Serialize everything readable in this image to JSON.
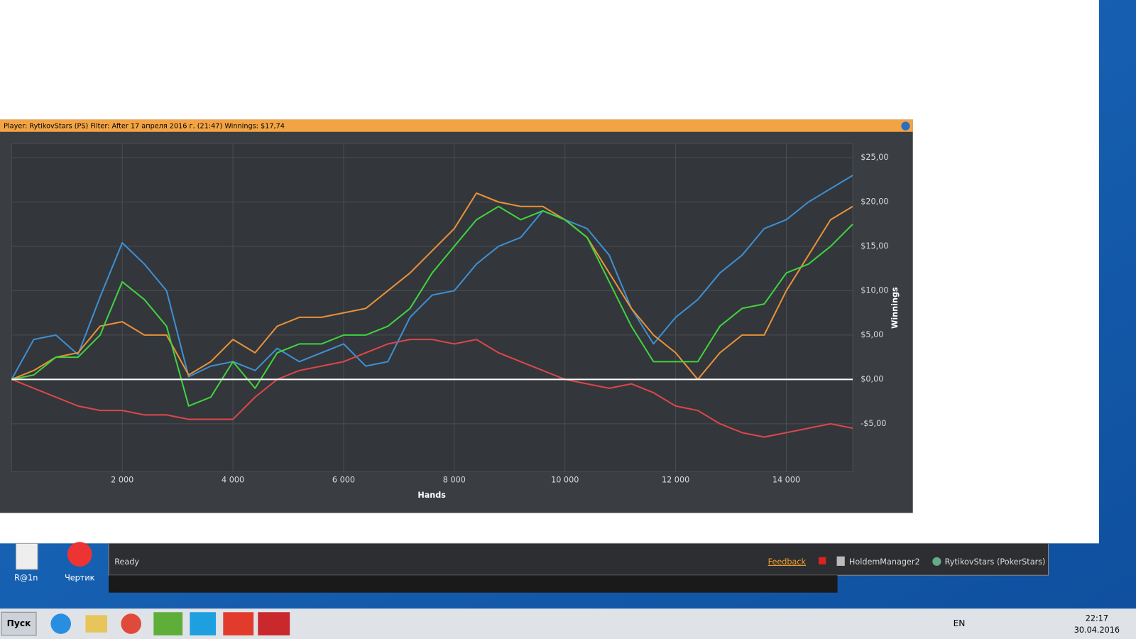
{
  "chart_data": {
    "type": "line",
    "title": "Player: RytikovStars (PS) Filter: After 17 апреля 2016 г. (21:47) Winnings: $17,74",
    "x_label": "Hands",
    "y_label": "Winnings",
    "x": [
      0,
      400,
      800,
      1200,
      1600,
      2000,
      2400,
      2800,
      3200,
      3600,
      4000,
      4400,
      4800,
      5200,
      5600,
      6000,
      6400,
      6800,
      7200,
      7600,
      8000,
      8400,
      8800,
      9200,
      9600,
      10000,
      10400,
      10800,
      11200,
      11600,
      12000,
      12400,
      12800,
      13200,
      13600,
      14000,
      14400,
      14800,
      15200
    ],
    "series": [
      {
        "color": "#3d8fd1",
        "values": [
          0,
          4.5,
          5,
          2.8,
          9.3,
          15.4,
          13,
          10,
          0.3,
          1.5,
          2,
          1,
          3.5,
          2,
          3,
          4,
          1.5,
          2,
          7,
          9.5,
          10,
          13,
          15,
          16,
          19,
          18,
          17,
          14,
          8,
          4,
          7,
          9,
          12,
          14,
          17,
          18,
          20,
          21.5,
          23
        ]
      },
      {
        "color": "#e8913a",
        "values": [
          0,
          1,
          2.5,
          3,
          6,
          6.5,
          5,
          5,
          0.5,
          2,
          4.5,
          3,
          6,
          7,
          7,
          7.5,
          8,
          10,
          12,
          14.5,
          17,
          21,
          20,
          19.5,
          19.5,
          18,
          16,
          12,
          8,
          5,
          3,
          0,
          3,
          5,
          5,
          10,
          14,
          18,
          19.5
        ]
      },
      {
        "color": "#3fd33f",
        "values": [
          0,
          0.5,
          2.5,
          2.5,
          5,
          11,
          9,
          6,
          -3,
          -2,
          2,
          -1,
          3,
          4,
          4,
          5,
          5,
          6,
          8,
          12,
          15,
          18,
          19.5,
          18,
          19,
          18,
          16,
          11,
          6,
          2,
          2,
          2,
          6,
          8,
          8.5,
          12,
          13,
          15,
          17.5
        ]
      },
      {
        "color": "#d9474a",
        "values": [
          0,
          -1,
          -2,
          -3,
          -3.5,
          -3.5,
          -4,
          -4,
          -4.5,
          -4.5,
          -4.5,
          -2,
          0,
          1,
          1.5,
          2,
          3,
          4,
          4.5,
          4.5,
          4,
          4.5,
          3,
          2,
          1,
          0,
          -0.5,
          -1,
          -0.5,
          -1.5,
          -3,
          -3.5,
          -5,
          -6,
          -6.5,
          -6,
          -5.5,
          -5,
          -5.5
        ]
      }
    ],
    "xlim": [
      0,
      15200
    ],
    "ylim": [
      -10.4,
      26.6
    ],
    "xticks": [
      {
        "value": 2000,
        "label": "2 000"
      },
      {
        "value": 4000,
        "label": "4 000"
      },
      {
        "value": 6000,
        "label": "6 000"
      },
      {
        "value": 8000,
        "label": "8 000"
      },
      {
        "value": 10000,
        "label": "10 000"
      },
      {
        "value": 12000,
        "label": "12 000"
      },
      {
        "value": 14000,
        "label": "14 000"
      }
    ],
    "yticks": [
      {
        "value": -5,
        "label": "-$5,00"
      },
      {
        "value": 0,
        "label": "$0,00"
      },
      {
        "value": 5,
        "label": "$5,00"
      },
      {
        "value": 10,
        "label": "$10,00"
      },
      {
        "value": 15,
        "label": "$15,00"
      },
      {
        "value": 20,
        "label": "$20,00"
      },
      {
        "value": 25,
        "label": "$25,00"
      }
    ],
    "grid": true
  },
  "status_bar": {
    "status": "Ready",
    "feedback": "Feedback",
    "app": "HoldemManager2",
    "player": "RytikovStars (PokerStars)"
  },
  "desktop_icons": [
    "R@1n",
    "Чертик"
  ],
  "taskbar": {
    "start": "Пуск",
    "language": "EN",
    "time": "22:17",
    "date": "30.04.2016"
  }
}
